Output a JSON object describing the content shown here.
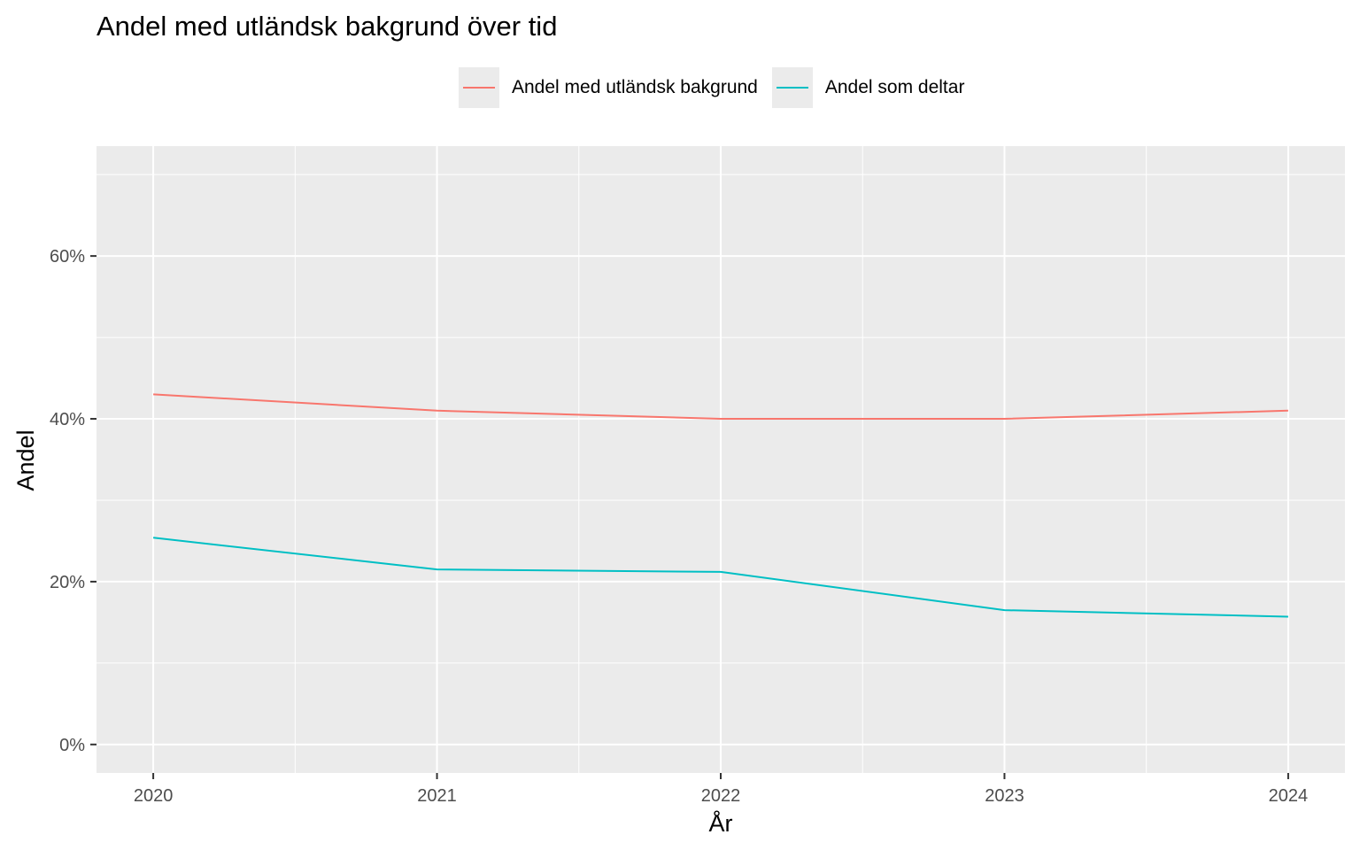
{
  "chart_data": {
    "type": "line",
    "title": "Andel med utländsk bakgrund över tid",
    "xlabel": "År",
    "ylabel": "Andel",
    "x": [
      2020,
      2021,
      2022,
      2023,
      2024
    ],
    "x_tick_labels": [
      "2020",
      "2021",
      "2022",
      "2023",
      "2024"
    ],
    "y_ticks": [
      0,
      0.2,
      0.4,
      0.6
    ],
    "y_tick_labels": [
      "0%",
      "20%",
      "40%",
      "60%"
    ],
    "xlim": [
      2019.8,
      2024.2
    ],
    "ylim": [
      -0.035,
      0.735
    ],
    "grid": true,
    "legend_position": "top",
    "background": "#ebebeb",
    "series": [
      {
        "name": "Andel med utländsk bakgrund",
        "color": "#F8766D",
        "values": [
          0.43,
          0.41,
          0.4,
          0.4,
          0.41
        ]
      },
      {
        "name": "Andel som deltar",
        "color": "#00BFC4",
        "values": [
          0.254,
          0.215,
          0.212,
          0.165,
          0.157
        ]
      }
    ]
  }
}
